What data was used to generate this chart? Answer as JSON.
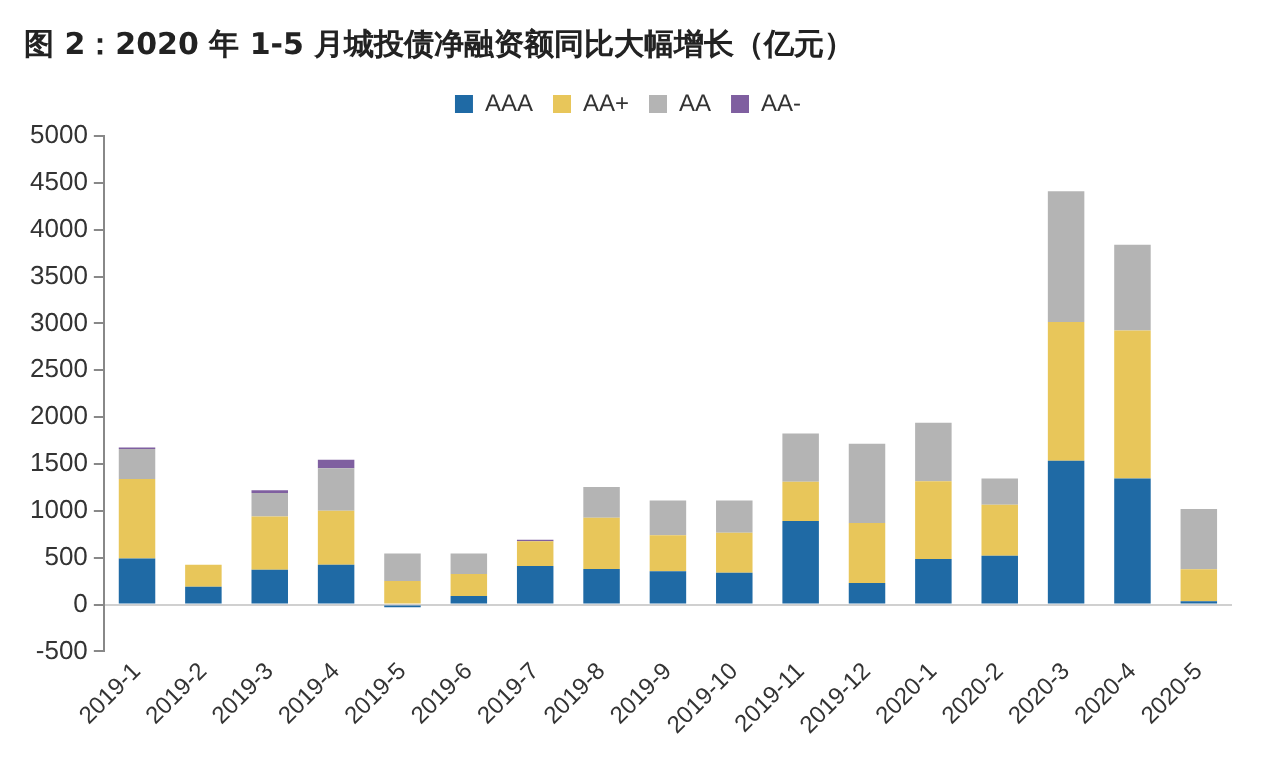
{
  "chart_data": {
    "type": "bar",
    "title": "图 2：2020 年 1-5 月城投债净融资额同比大幅增长（亿元）",
    "categories": [
      "2019-1",
      "2019-2",
      "2019-3",
      "2019-4",
      "2019-5",
      "2019-6",
      "2019-7",
      "2019-8",
      "2019-9",
      "2019-10",
      "2019-11",
      "2019-12",
      "2020-1",
      "2020-2",
      "2020-3",
      "2020-4",
      "2020-5"
    ],
    "series": [
      {
        "name": "AAA",
        "color": "#1f6aa5",
        "values": [
          490,
          190,
          370,
          425,
          -30,
          90,
          410,
          380,
          355,
          340,
          890,
          230,
          485,
          520,
          1535,
          1345,
          35
        ]
      },
      {
        "name": "AA+",
        "color": "#e8c65a",
        "values": [
          850,
          235,
          570,
          575,
          250,
          235,
          265,
          545,
          385,
          425,
          420,
          640,
          830,
          545,
          1480,
          1580,
          340
        ]
      },
      {
        "name": "AA",
        "color": "#b4b4b4",
        "values": [
          320,
          null,
          250,
          455,
          295,
          220,
          null,
          330,
          370,
          345,
          515,
          845,
          625,
          280,
          1395,
          915,
          645
        ]
      },
      {
        "name": "AA-",
        "color": "#7f5fa0",
        "values": [
          15,
          0,
          30,
          90,
          0,
          0,
          15,
          0,
          0,
          0,
          0,
          0,
          0,
          0,
          0,
          0,
          0
        ]
      }
    ],
    "stacked": true,
    "ylim": [
      -500,
      5000
    ],
    "yticks": [
      -500,
      0,
      500,
      1000,
      1500,
      2000,
      2500,
      3000,
      3500,
      4000,
      4500,
      5000
    ],
    "grid": false,
    "legend": "top"
  }
}
